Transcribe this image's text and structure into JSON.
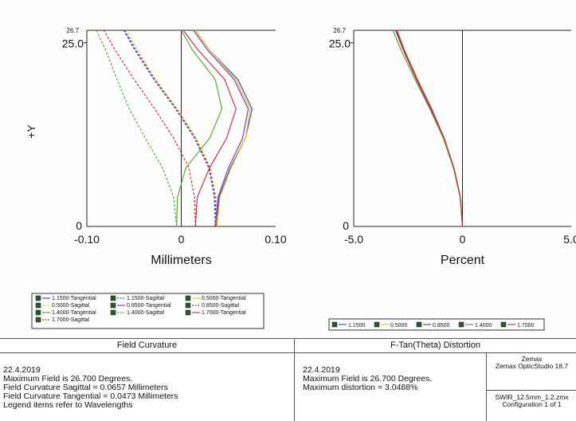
{
  "chart_data": [
    {
      "type": "line",
      "title": "Field Curvature",
      "xlabel": "Millimeters",
      "ylabel": "+Y",
      "xlim": [
        -0.1,
        0.1
      ],
      "ylim": [
        0,
        26.7
      ],
      "x_ticks": [
        "-0.10",
        "0",
        "0.10"
      ],
      "y_ticks": [
        "0",
        "25.0"
      ],
      "y_max_label": "26.7",
      "y_axis": [
        0,
        4,
        8,
        12,
        16,
        20,
        24,
        26.7
      ],
      "series": [
        {
          "name": "1.1500-Tangential",
          "color": "#3a4fc8",
          "dash": false,
          "x": [
            0.037,
            0.04,
            0.052,
            0.068,
            0.075,
            0.06,
            0.03,
            0.015
          ]
        },
        {
          "name": "1.1500-Sagittal",
          "color": "#3a4fc8",
          "dash": true,
          "x": [
            0.037,
            0.036,
            0.03,
            0.015,
            -0.005,
            -0.028,
            -0.048,
            -0.06
          ]
        },
        {
          "name": "0.5000-Tangential",
          "color": "#e0cc20",
          "dash": false,
          "x": [
            0.038,
            0.041,
            0.053,
            0.068,
            0.073,
            0.058,
            0.03,
            0.015
          ]
        },
        {
          "name": "0.5000-Sagittal",
          "color": "#e0cc20",
          "dash": true,
          "x": [
            0.038,
            0.037,
            0.031,
            0.016,
            -0.004,
            -0.027,
            -0.046,
            -0.058
          ]
        },
        {
          "name": "0.8500-Tangential",
          "color": "#8a3a9a",
          "dash": false,
          "x": [
            0.036,
            0.039,
            0.05,
            0.065,
            0.071,
            0.056,
            0.028,
            0.013
          ]
        },
        {
          "name": "0.8500-Sagittal",
          "color": "#8a3a9a",
          "dash": true,
          "x": [
            0.036,
            0.035,
            0.029,
            0.014,
            -0.006,
            -0.029,
            -0.049,
            -0.061
          ]
        },
        {
          "name": "1.4000-Tangential",
          "color": "#5aa83a",
          "dash": false,
          "x": [
            -0.005,
            -0.004,
            0.005,
            0.03,
            0.043,
            0.036,
            0.012,
            0.0
          ]
        },
        {
          "name": "1.4000-Sagittal",
          "color": "#5aa83a",
          "dash": true,
          "x": [
            -0.005,
            -0.008,
            -0.02,
            -0.038,
            -0.055,
            -0.068,
            -0.08,
            -0.09
          ]
        },
        {
          "name": "1.7000-Tangential",
          "color": "#cc3344",
          "dash": false,
          "x": [
            0.015,
            0.017,
            0.03,
            0.048,
            0.058,
            0.046,
            0.018,
            0.002
          ]
        },
        {
          "name": "1.7000-Sagittal",
          "color": "#cc3344",
          "dash": true,
          "x": [
            0.015,
            0.014,
            0.008,
            -0.008,
            -0.028,
            -0.05,
            -0.07,
            -0.082
          ]
        }
      ],
      "legend_placement": "bottom"
    },
    {
      "type": "line",
      "title": "F-Tan(Theta) Distortion",
      "xlabel": "Percent",
      "ylabel": "",
      "xlim": [
        -5.0,
        5.0
      ],
      "ylim": [
        0,
        26.7
      ],
      "x_ticks": [
        "-5.0",
        "0",
        "5.0"
      ],
      "y_ticks": [
        "0",
        "25.0"
      ],
      "y_max_label": "26.7",
      "y_axis": [
        0,
        4,
        8,
        12,
        16,
        20,
        24,
        26.7
      ],
      "series": [
        {
          "name": "1.1500",
          "color": "#3a4fc8",
          "x": [
            0,
            -0.1,
            -0.4,
            -0.85,
            -1.45,
            -2.1,
            -2.7,
            -3.05
          ]
        },
        {
          "name": "0.5000",
          "color": "#e0cc20",
          "x": [
            0,
            -0.1,
            -0.4,
            -0.83,
            -1.4,
            -2.05,
            -2.65,
            -3.0
          ]
        },
        {
          "name": "0.8500",
          "color": "#8a3a9a",
          "x": [
            0,
            -0.1,
            -0.4,
            -0.84,
            -1.42,
            -2.08,
            -2.68,
            -3.02
          ]
        },
        {
          "name": "1.4000",
          "color": "#5aa83a",
          "x": [
            0,
            -0.11,
            -0.42,
            -0.88,
            -1.5,
            -2.18,
            -2.82,
            -3.2
          ]
        },
        {
          "name": "1.7000",
          "color": "#cc3344",
          "x": [
            0,
            -0.1,
            -0.4,
            -0.85,
            -1.46,
            -2.12,
            -2.72,
            -3.08
          ]
        }
      ],
      "legend_placement": "bottom"
    }
  ],
  "info": {
    "left": {
      "header": "Field Curvature",
      "lines": [
        "22.4.2019",
        "Maximum Field is 26.700 Degrees.",
        "Field Curvature Sagittal = 0.0657 Millimeters",
        "Field Curvature Tangential = 0.0473 Millimeters",
        "Legend items refer to Wavelengths"
      ]
    },
    "right": {
      "header": "F-Tan(Theta) Distortion",
      "lines": [
        "22.4.2019",
        "Maximum Field is 26.700 Degrees.",
        "Maximum distortion = 3.0488%"
      ]
    },
    "vendor": {
      "line1": "Zemax",
      "line2": "Zemax OpticStudio 18.7"
    },
    "file": {
      "line1": "SWIR_12.5mm_1.2.zmx",
      "line2": "Configuration 1 of 1"
    }
  }
}
